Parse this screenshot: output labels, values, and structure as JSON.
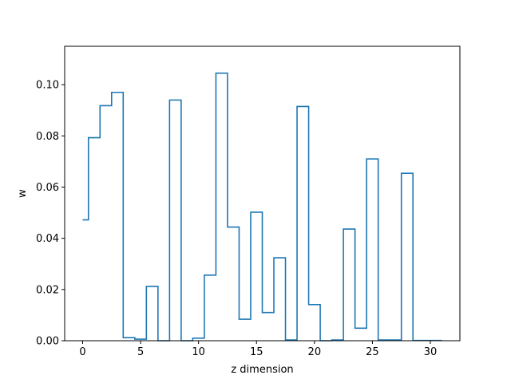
{
  "chart_data": {
    "type": "step",
    "x": [
      0,
      1,
      2,
      3,
      4,
      5,
      6,
      7,
      8,
      9,
      10,
      11,
      12,
      13,
      14,
      15,
      16,
      17,
      18,
      19,
      20,
      21,
      22,
      23,
      24,
      25,
      26,
      27,
      28,
      29,
      30,
      31
    ],
    "values": [
      0.0472,
      0.0793,
      0.0918,
      0.097,
      0.0012,
      0.0006,
      0.0212,
      0.0,
      0.094,
      0.0,
      0.001,
      0.0256,
      0.1045,
      0.0444,
      0.0084,
      0.0502,
      0.011,
      0.0324,
      0.0003,
      0.0915,
      0.0141,
      0.0,
      0.0003,
      0.0436,
      0.0049,
      0.071,
      0.0003,
      0.0003,
      0.0654,
      0.0001,
      0.0001,
      0.0001
    ],
    "step": "mid",
    "series_color": "#1f77b4",
    "title": "",
    "xlabel": "z dimension",
    "ylabel": "w",
    "xlim": [
      -1.55,
      32.55
    ],
    "ylim": [
      0,
      0.115
    ],
    "xticks": [
      0,
      5,
      10,
      15,
      20,
      25,
      30
    ],
    "yticks": [
      0.0,
      0.02,
      0.04,
      0.06,
      0.08,
      0.1
    ],
    "ytick_labels": [
      "0.00",
      "0.02",
      "0.04",
      "0.06",
      "0.08",
      "0.10"
    ],
    "grid": false
  }
}
